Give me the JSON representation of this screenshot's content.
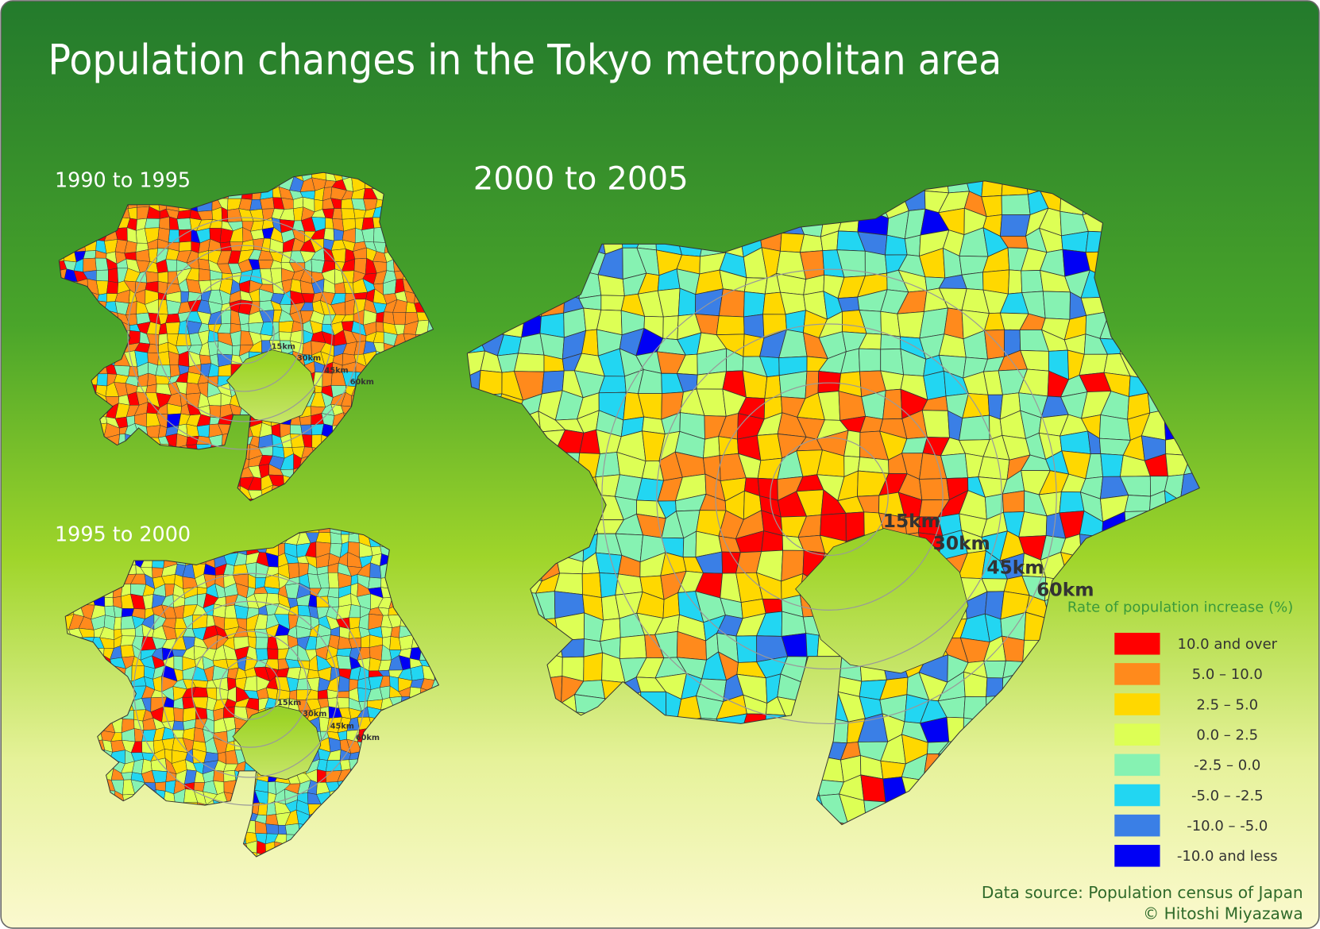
{
  "title": "Population changes in the Tokyo metropolitan area",
  "maps": [
    {
      "label": "2000 to 2005"
    },
    {
      "label": "1990 to 1995"
    },
    {
      "label": "1995 to 2000"
    }
  ],
  "rings": [
    "15km",
    "30km",
    "45km",
    "60km"
  ],
  "legend": {
    "title": "Rate of population increase (%)",
    "items": [
      {
        "label": "10.0 and over",
        "color": "#ff0000"
      },
      {
        "label": "5.0 – 10.0",
        "color": "#ff8a1c"
      },
      {
        "label": "2.5 – 5.0",
        "color": "#ffd800"
      },
      {
        "label": "0.0 – 2.5",
        "color": "#ddff55"
      },
      {
        "label": "-2.5 – 0.0",
        "color": "#86f2b2"
      },
      {
        "label": "-5.0 – -2.5",
        "color": "#22d6f2"
      },
      {
        "label": "-10.0 – -5.0",
        "color": "#3a7fe6"
      },
      {
        "label": "-10.0 and less",
        "color": "#0000f5"
      }
    ]
  },
  "source": "Data source: Population census of Japan",
  "credit": "© Hitoshi Miyazawa"
}
